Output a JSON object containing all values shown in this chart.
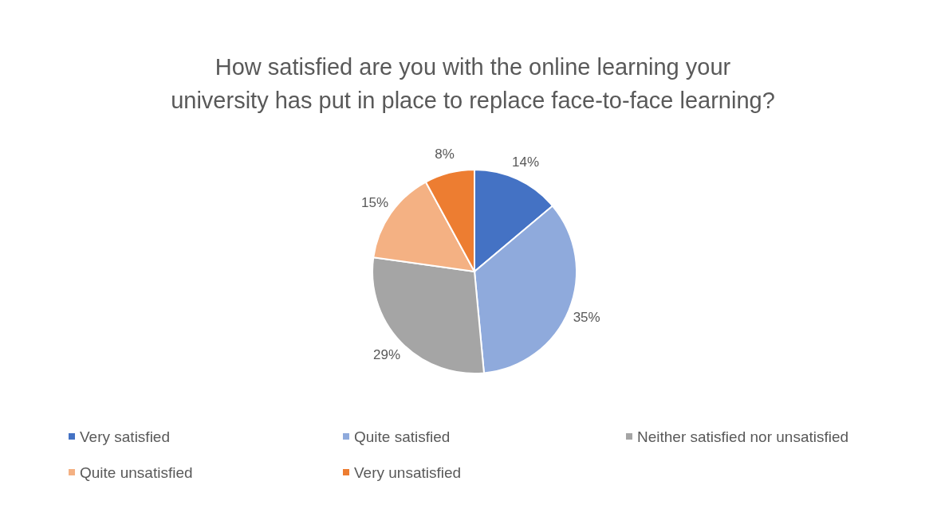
{
  "chart_data": {
    "type": "pie",
    "title": "How satisfied are you with the online learning your university has put in place to replace face-to-face learning?",
    "categories": [
      "Very satisfied",
      "Quite satisfied",
      "Neither satisfied nor unsatisfied",
      "Quite unsatisfied",
      "Very unsatisfied"
    ],
    "values": [
      14,
      35,
      29,
      15,
      8
    ],
    "colors": [
      "#4472c4",
      "#8faadc",
      "#a5a5a5",
      "#f4b183",
      "#ed7d31"
    ],
    "value_labels": [
      "14%",
      "35%",
      "29%",
      "15%",
      "8%"
    ],
    "legend": "bottom"
  }
}
